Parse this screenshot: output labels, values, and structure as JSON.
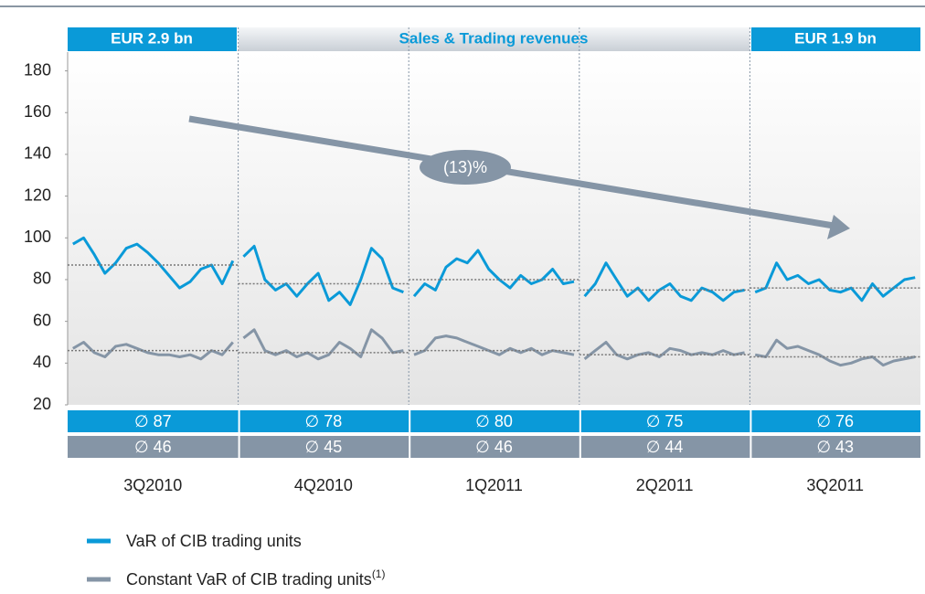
{
  "chart_data": {
    "type": "line",
    "banners": [
      "EUR 2.9 bn",
      "Sales & Trading revenues",
      "EUR 1.9 bn"
    ],
    "annotation": "(13)%",
    "categories": [
      "3Q2010",
      "4Q2010",
      "1Q2011",
      "2Q2011",
      "3Q2011"
    ],
    "ylim": [
      20,
      189
    ],
    "yticks": [
      20,
      40,
      60,
      80,
      100,
      120,
      140,
      160,
      180
    ],
    "series": [
      {
        "name": "VaR of CIB trading units",
        "color": "#0a9ad8",
        "values": [
          [
            97,
            100,
            92,
            83,
            88,
            95,
            97,
            93,
            88,
            82,
            76,
            79,
            85,
            87,
            78,
            89
          ],
          [
            91,
            96,
            80,
            75,
            78,
            72,
            78,
            83,
            70,
            74,
            68,
            80,
            95,
            90,
            76,
            74
          ],
          [
            72,
            78,
            75,
            86,
            90,
            88,
            94,
            85,
            80,
            76,
            82,
            78,
            80,
            85,
            78,
            79
          ],
          [
            72,
            78,
            88,
            80,
            72,
            76,
            70,
            75,
            78,
            72,
            70,
            76,
            74,
            70,
            74,
            75
          ],
          [
            74,
            76,
            88,
            80,
            82,
            78,
            80,
            75,
            74,
            76,
            70,
            78,
            72,
            76,
            80,
            81
          ]
        ],
        "averages": [
          87,
          78,
          80,
          75,
          76
        ],
        "average_labels": [
          "∅ 87",
          "∅ 78",
          "∅ 80",
          "∅ 75",
          "∅ 76"
        ]
      },
      {
        "name": "Constant VaR of CIB trading units",
        "note_marker": "(1)",
        "color": "#8595a6",
        "values": [
          [
            47,
            50,
            45,
            43,
            48,
            49,
            47,
            45,
            44,
            44,
            43,
            44,
            42,
            46,
            44,
            50
          ],
          [
            52,
            56,
            46,
            44,
            46,
            43,
            45,
            42,
            44,
            50,
            47,
            43,
            56,
            52,
            45,
            46
          ],
          [
            44,
            46,
            52,
            53,
            52,
            50,
            48,
            46,
            44,
            47,
            45,
            47,
            44,
            46,
            45,
            44
          ],
          [
            42,
            46,
            50,
            44,
            42,
            44,
            45,
            43,
            47,
            46,
            44,
            45,
            44,
            46,
            44,
            45
          ],
          [
            44,
            43,
            51,
            47,
            48,
            46,
            44,
            41,
            39,
            40,
            42,
            43,
            39,
            41,
            42,
            43
          ]
        ],
        "averages": [
          46,
          45,
          46,
          44,
          43
        ],
        "average_labels": [
          "∅ 46",
          "∅ 45",
          "∅ 46",
          "∅ 44",
          "∅ 43"
        ]
      }
    ]
  }
}
